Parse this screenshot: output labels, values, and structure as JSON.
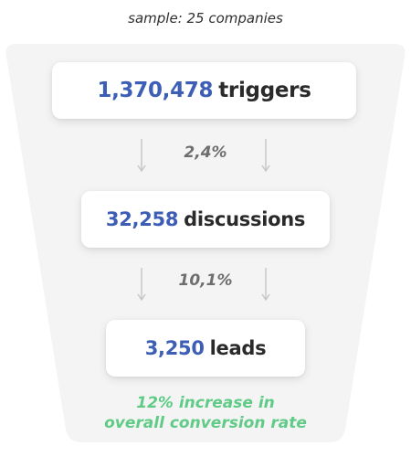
{
  "sample_note": "sample: 25 companies",
  "stages": [
    {
      "value": "1,370,478",
      "label": "triggers"
    },
    {
      "value": "32,258",
      "label": "discussions"
    },
    {
      "value": "3,250",
      "label": "leads"
    }
  ],
  "rates": [
    "2,4%",
    "10,1%"
  ],
  "conclusion": [
    "12% increase in",
    "overall conversion rate"
  ],
  "colors": {
    "value": "#3d5eb5",
    "label": "#2a2a2a",
    "rate": "#6e6e6e",
    "conclusion": "#5fcb86",
    "funnel_background": "#f4f4f4",
    "arrow": "#c8c8c8"
  }
}
